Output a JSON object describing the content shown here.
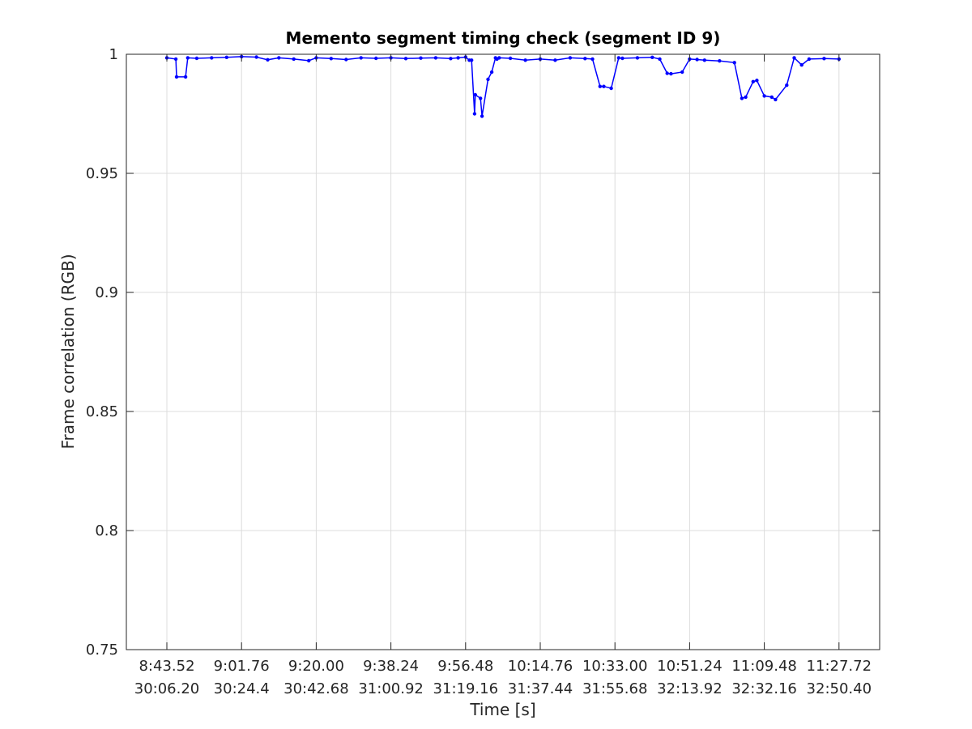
{
  "chart_data": {
    "type": "line",
    "title": "Memento segment timing check (segment ID 9)",
    "xlabel": "Time [s]",
    "ylabel": "Frame correlation (RGB)",
    "xlim": [
      0,
      9
    ],
    "ylim": [
      0.75,
      1
    ],
    "grid": true,
    "legend": "none",
    "y_ticks": [
      "0.75",
      "0.8",
      "0.85",
      "0.9",
      "0.95",
      "1"
    ],
    "x_tick_values": [
      0,
      1,
      2,
      3,
      4,
      5,
      6,
      7,
      8,
      9
    ],
    "x_ticks_top": [
      "8:43.52",
      "9:01.76",
      "9:20.00",
      "9:38.24",
      "9:56.48",
      "10:14.76",
      "10:33.00",
      "10:51.24",
      "11:09.48",
      "11:27.72"
    ],
    "x_ticks_bottom": [
      "30:06.20",
      "30:24.4",
      "30:42.68",
      "31:00.92",
      "31:19.16",
      "31:37.44",
      "31:55.68",
      "32:13.92",
      "32:32.16",
      "32:50.40"
    ],
    "series": [
      {
        "color": "#0000ff",
        "marker": "dot",
        "x": [
          0.0,
          0.12,
          0.13,
          0.25,
          0.28,
          0.4,
          0.6,
          0.8,
          1.0,
          1.2,
          1.35,
          1.5,
          1.7,
          1.9,
          2.0,
          2.2,
          2.4,
          2.6,
          2.8,
          3.0,
          3.2,
          3.4,
          3.6,
          3.8,
          3.9,
          4.0,
          4.05,
          4.08,
          4.12,
          4.13,
          4.2,
          4.22,
          4.3,
          4.35,
          4.4,
          4.42,
          4.45,
          4.6,
          4.8,
          5.0,
          5.2,
          5.4,
          5.6,
          5.7,
          5.8,
          5.85,
          5.95,
          6.05,
          6.1,
          6.3,
          6.5,
          6.6,
          6.7,
          6.75,
          6.9,
          7.0,
          7.1,
          7.2,
          7.4,
          7.6,
          7.7,
          7.75,
          7.85,
          7.9,
          8.0,
          8.1,
          8.15,
          8.3,
          8.4,
          8.5,
          8.6,
          8.8,
          9.0
        ],
        "y": [
          0.9985,
          0.998,
          0.9905,
          0.9905,
          0.9985,
          0.9983,
          0.9985,
          0.9987,
          0.999,
          0.9988,
          0.9977,
          0.9985,
          0.998,
          0.9973,
          0.9985,
          0.9982,
          0.9978,
          0.9985,
          0.9983,
          0.9985,
          0.9982,
          0.9984,
          0.9985,
          0.9982,
          0.9985,
          0.9988,
          0.9975,
          0.9975,
          0.975,
          0.983,
          0.9815,
          0.974,
          0.9895,
          0.9925,
          0.9985,
          0.998,
          0.9985,
          0.9983,
          0.9975,
          0.998,
          0.9975,
          0.9985,
          0.9982,
          0.998,
          0.9865,
          0.9865,
          0.9857,
          0.9985,
          0.9983,
          0.9985,
          0.9987,
          0.998,
          0.992,
          0.9918,
          0.9925,
          0.998,
          0.9978,
          0.9975,
          0.9972,
          0.9965,
          0.9815,
          0.982,
          0.9885,
          0.989,
          0.9825,
          0.982,
          0.981,
          0.987,
          0.9985,
          0.9955,
          0.998,
          0.9982,
          0.998
        ]
      }
    ]
  }
}
